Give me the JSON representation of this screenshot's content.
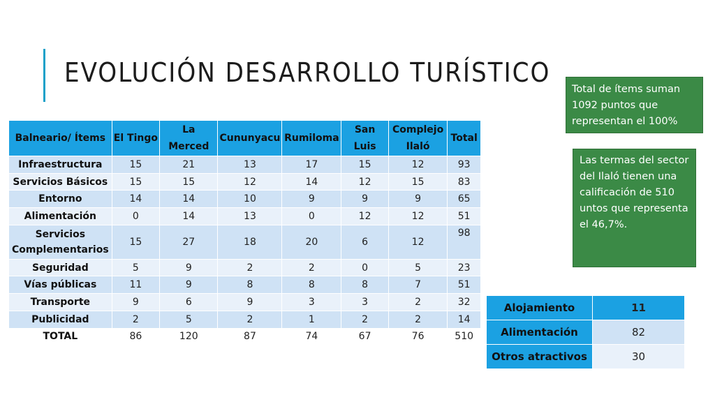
{
  "slide": {
    "title": "EVOLUCIÓN DESARROLLO TURÍSTICO"
  },
  "main_table": {
    "headers": [
      "Balneario/ Ítems",
      "El Tingo",
      "La Merced",
      "Cununyacu",
      "Rumiloma",
      "San Luis",
      "Complejo Ilaló",
      "Total"
    ],
    "rows": [
      {
        "label": "Infraestructura",
        "values": [
          "15",
          "21",
          "13",
          "17",
          "15",
          "12",
          "93"
        ]
      },
      {
        "label": "Servicios Básicos",
        "values": [
          "15",
          "15",
          "12",
          "14",
          "12",
          "15",
          "83"
        ]
      },
      {
        "label": "Entorno",
        "values": [
          "14",
          "14",
          "10",
          "9",
          "9",
          "9",
          "65"
        ]
      },
      {
        "label": "Alimentación",
        "values": [
          "0",
          "14",
          "13",
          "0",
          "12",
          "12",
          "51"
        ]
      },
      {
        "label": "Servicios Complementarios",
        "values": [
          "15",
          "27",
          "18",
          "20",
          "6",
          "12",
          "98"
        ]
      },
      {
        "label": "Seguridad",
        "values": [
          "5",
          "9",
          "2",
          "2",
          "0",
          "5",
          "23"
        ]
      },
      {
        "label": "Vías públicas",
        "values": [
          "11",
          "9",
          "8",
          "8",
          "8",
          "7",
          "51"
        ]
      },
      {
        "label": "Transporte",
        "values": [
          "9",
          "6",
          "9",
          "3",
          "3",
          "2",
          "32"
        ]
      },
      {
        "label": "Publicidad",
        "values": [
          "2",
          "5",
          "2",
          "1",
          "2",
          "2",
          "14"
        ]
      },
      {
        "label": "TOTAL",
        "values": [
          "86",
          "120",
          "87",
          "74",
          "67",
          "76",
          "510"
        ]
      }
    ]
  },
  "notes": {
    "total_note": "Total de ítems suman 1092 puntos que representan el 100%",
    "ilalo_note": "Las termas del sector del Ilaló tienen una calificación de 510 untos que representa el 46,7%."
  },
  "side_table": {
    "rows": [
      {
        "label": "Alojamiento",
        "value": "11"
      },
      {
        "label": "Alimentación",
        "value": "82"
      },
      {
        "label": "Otros atractivos",
        "value": "30"
      }
    ]
  },
  "colors": {
    "accent": "#1ba1c9",
    "header_blue": "#1ba1e2",
    "row_light": "#cfe2f5",
    "row_lighter": "#e9f1fa",
    "note_green": "#3b8a46"
  }
}
